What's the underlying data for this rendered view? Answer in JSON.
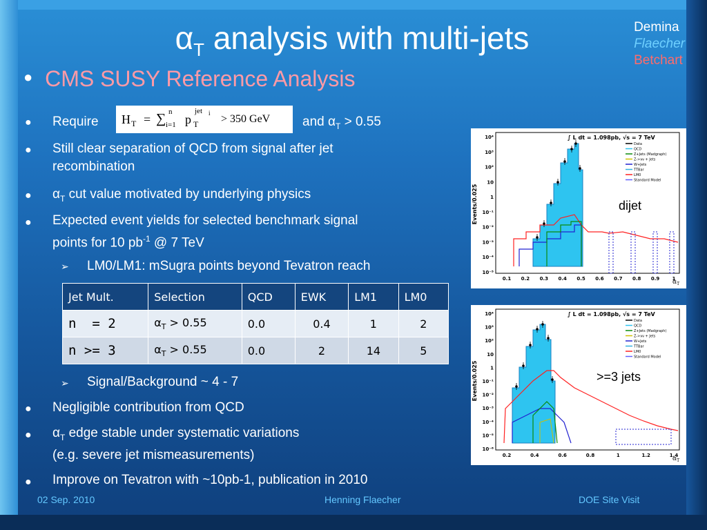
{
  "title": {
    "main_pre": "α",
    "main_sub": "T",
    "main_post": " analysis with multi-jets"
  },
  "authors": [
    "Demina",
    "Flaecher",
    "Betchart"
  ],
  "subheading": "CMS SUSY Reference Analysis",
  "bullets": {
    "require_pre": "Require",
    "require_post_pre": "and α",
    "require_post_sub": "T",
    "require_post_post": " > 0.55",
    "separation_l1": "Still clear separation of QCD from signal after jet",
    "separation_l2": "recombination",
    "cut_pre": "α",
    "cut_sub": "T",
    "cut_post": " cut value motivated by underlying physics",
    "yields_l1": "Expected event yields for selected benchmark signal",
    "yields_l2_pre": "points for 10 pb",
    "yields_l2_sup": "-1",
    "yields_l2_post": " @ 7 TeV",
    "lm_note": "LM0/LM1: mSugra points beyond Tevatron reach",
    "sb_note": "Signal/Background ~ 4 - 7",
    "negligible": "Negligible contribution from QCD",
    "edge_pre": "α",
    "edge_sub": "T",
    "edge_post": " edge stable under systematic variations",
    "edge_l2": "(e.g. severe jet mismeasurements)",
    "improve": "Improve on Tevatron with ~10pb-1, publication in 2010"
  },
  "formula": {
    "H": "H",
    "T": "T",
    "eq": "=",
    "sum": "∑",
    "n": "n",
    "i1": "i=1",
    "p": "p",
    "jet": "jet",
    "i": "i",
    "T2": "T",
    "cut": "> 350 GeV"
  },
  "table": {
    "headers": [
      "Jet Mult.",
      "Selection",
      "QCD",
      "EWK",
      "LM1",
      "LM0"
    ],
    "rows": [
      {
        "mult": "n  = 2",
        "sel_pre": "α",
        "sel_sub": "T",
        "sel_post": " > 0.55",
        "qcd": "0.0",
        "ewk": "0.4",
        "lm1": "1",
        "lm0": "2"
      },
      {
        "mult": "n >= 3",
        "sel_pre": "α",
        "sel_sub": "T",
        "sel_post": " > 0.55",
        "qcd": "0.0",
        "ewk": "2",
        "lm1": "14",
        "lm0": "5"
      }
    ]
  },
  "plot_top": {
    "lumi": "∫ L dt = 1.098pb, √s = 7 TeV",
    "ylabel": "Events/0.025",
    "xlabel": "α",
    "xlabel_sub": "T",
    "label": "dijet",
    "ytick_labels": [
      "10⁴",
      "10³",
      "10²",
      "10",
      "1",
      "10⁻¹",
      "10⁻²",
      "10⁻³",
      "10⁻⁴",
      "10⁻⁵"
    ],
    "xtick_labels": [
      "0.1",
      "0.2",
      "0.3",
      "0.4",
      "0.5",
      "0.6",
      "0.7",
      "0.8",
      "0.9",
      "1"
    ],
    "legend": [
      "Data",
      "QCD",
      "Z+Jets (Madgraph)",
      "Z->νν + Jets",
      "W+Jets",
      "TTBar",
      "LM0",
      "Standard Model"
    ],
    "colors": {
      "data": "#000000",
      "qcd": "#2ec4f0",
      "zjets": "#0a8a0a",
      "znn": "#d0c000",
      "wjets": "#2020d0",
      "ttbar": "#30b0e0",
      "lm0": "#ff2020",
      "sm": "#6060ff"
    }
  },
  "plot_bottom": {
    "lumi": "∫ L dt = 1.098pb, √s = 7 TeV",
    "ylabel": "Events/0.025",
    "xlabel": "α",
    "xlabel_sub": "T",
    "label": ">=3 jets",
    "ytick_labels": [
      "10⁴",
      "10³",
      "10²",
      "10",
      "1",
      "10⁻¹",
      "10⁻²",
      "10⁻³",
      "10⁻⁴",
      "10⁻⁵",
      "10⁻⁶"
    ],
    "xtick_labels": [
      "0.2",
      "0.4",
      "0.6",
      "0.8",
      "1",
      "1.2",
      "1.4"
    ],
    "legend": [
      "Data",
      "QCD",
      "Z+Jets (Madgraph)",
      "Z->νν + Jets",
      "W+Jets",
      "TTBar",
      "LM0",
      "Standard Model"
    ]
  },
  "footer": {
    "date": "02 Sep. 2010",
    "author": "Henning Flaecher",
    "event": "DOE Site Visit"
  }
}
